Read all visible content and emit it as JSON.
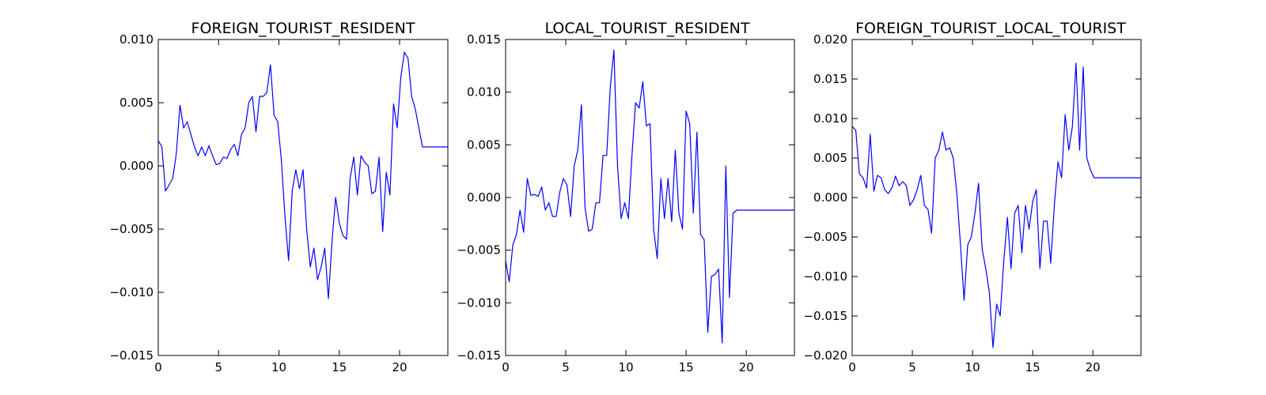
{
  "chart_data": [
    {
      "type": "line",
      "title": "FOREIGN_TOURIST_RESIDENT",
      "xlim": [
        0,
        24
      ],
      "ylim": [
        -0.015,
        0.01
      ],
      "xticks": [
        0,
        5,
        10,
        15,
        20
      ],
      "xtick_labels": [
        "0",
        "5",
        "10",
        "15",
        "20"
      ],
      "yticks": [
        -0.015,
        -0.01,
        -0.005,
        0.0,
        0.005,
        0.01
      ],
      "ytick_labels": [
        "−0.015",
        "−0.010",
        "−0.005",
        "0.000",
        "0.005",
        "0.010"
      ],
      "grid": false,
      "color": "#0000ff",
      "series": [
        {
          "x": [
            0,
            0.3,
            0.6,
            0.9,
            1.2,
            1.5,
            1.8,
            2.1,
            2.4,
            2.7,
            3.0,
            3.3,
            3.6,
            3.9,
            4.2,
            4.5,
            4.8,
            5.1,
            5.4,
            5.7,
            6.0,
            6.3,
            6.6,
            6.9,
            7.2,
            7.5,
            7.8,
            8.1,
            8.4,
            8.7,
            9.0,
            9.3,
            9.6,
            9.9,
            10.2,
            10.5,
            10.8,
            11.1,
            11.4,
            11.7,
            12.0,
            12.3,
            12.6,
            12.9,
            13.2,
            13.5,
            13.8,
            14.1,
            14.4,
            14.7,
            15.0,
            15.3,
            15.6,
            15.9,
            16.2,
            16.5,
            16.8,
            17.1,
            17.4,
            17.7,
            18.0,
            18.3,
            18.6,
            18.9,
            19.2,
            19.5,
            19.8,
            20.1,
            20.4,
            20.7,
            21.0,
            21.3,
            21.6,
            21.9,
            22.2,
            22.5,
            22.8,
            23.1,
            23.4,
            23.7,
            24.0
          ],
          "y": [
            0.002,
            0.0015,
            -0.002,
            -0.0015,
            -0.001,
            0.001,
            0.0048,
            0.003,
            0.0035,
            0.0025,
            0.0015,
            0.0008,
            0.0015,
            0.0008,
            0.0016,
            0.0008,
            0.0001,
            0.0002,
            0.0007,
            0.0006,
            0.0013,
            0.0017,
            0.0008,
            0.0025,
            0.003,
            0.005,
            0.0055,
            0.0027,
            0.0055,
            0.0055,
            0.0058,
            0.008,
            0.004,
            0.0035,
            0.0005,
            -0.004,
            -0.0075,
            -0.002,
            -0.0003,
            -0.0018,
            -0.0003,
            -0.005,
            -0.008,
            -0.0065,
            -0.009,
            -0.008,
            -0.0065,
            -0.0105,
            -0.006,
            -0.0025,
            -0.0045,
            -0.0055,
            -0.0058,
            -0.001,
            0.0007,
            -0.0023,
            0.0008,
            0.0003,
            0.0,
            -0.0022,
            -0.002,
            0.0007,
            -0.0052,
            -0.0005,
            -0.0023,
            0.0049,
            0.003,
            0.007,
            0.009,
            0.0085,
            0.0055,
            0.0045,
            0.003,
            0.0015,
            0.0015,
            0.0015,
            0.0015,
            0.0015,
            0.0015,
            0.0015,
            0.0015
          ]
        }
      ]
    },
    {
      "type": "line",
      "title": "LOCAL_TOURIST_RESIDENT",
      "xlim": [
        0,
        24
      ],
      "ylim": [
        -0.015,
        0.015
      ],
      "xticks": [
        0,
        5,
        10,
        15,
        20
      ],
      "xtick_labels": [
        "0",
        "5",
        "10",
        "15",
        "20"
      ],
      "yticks": [
        -0.015,
        -0.01,
        -0.005,
        0.0,
        0.005,
        0.01,
        0.015
      ],
      "ytick_labels": [
        "−0.015",
        "−0.010",
        "−0.005",
        "0.000",
        "0.005",
        "0.010",
        "0.015"
      ],
      "grid": false,
      "color": "#0000ff",
      "series": [
        {
          "x": [
            0,
            0.3,
            0.6,
            0.9,
            1.2,
            1.5,
            1.8,
            2.1,
            2.4,
            2.7,
            3.0,
            3.3,
            3.6,
            3.9,
            4.2,
            4.5,
            4.8,
            5.1,
            5.4,
            5.7,
            6.0,
            6.3,
            6.6,
            6.9,
            7.2,
            7.5,
            7.8,
            8.1,
            8.4,
            8.7,
            9.0,
            9.3,
            9.6,
            9.9,
            10.2,
            10.5,
            10.8,
            11.1,
            11.4,
            11.7,
            12.0,
            12.3,
            12.6,
            12.9,
            13.2,
            13.5,
            13.8,
            14.1,
            14.4,
            14.7,
            15.0,
            15.3,
            15.6,
            15.9,
            16.2,
            16.5,
            16.8,
            17.1,
            17.4,
            17.7,
            18.0,
            18.3,
            18.6,
            18.9,
            19.2,
            19.5,
            19.8,
            20.1,
            20.4,
            20.7,
            21.0,
            21.3,
            21.6,
            21.9,
            22.2,
            22.5,
            22.8,
            23.1,
            23.4,
            23.7,
            24.0
          ],
          "y": [
            -0.006,
            -0.008,
            -0.0045,
            -0.0035,
            -0.0012,
            -0.0033,
            0.0018,
            0.0002,
            0.0003,
            0.0001,
            0.001,
            -0.0012,
            -0.0005,
            -0.0018,
            -0.0018,
            0.0005,
            0.0018,
            0.0012,
            -0.0018,
            0.003,
            0.0045,
            0.0088,
            -0.001,
            -0.0032,
            -0.003,
            -0.0005,
            -0.0005,
            0.004,
            0.004,
            0.0105,
            0.014,
            0.003,
            -0.002,
            -0.0005,
            -0.002,
            0.004,
            0.009,
            0.0085,
            0.011,
            0.0068,
            0.007,
            -0.003,
            -0.0058,
            0.0018,
            -0.002,
            0.0018,
            -0.0023,
            0.0045,
            -0.0015,
            -0.003,
            0.0082,
            0.007,
            -0.0015,
            0.0062,
            -0.0035,
            -0.004,
            -0.0128,
            -0.0075,
            -0.0073,
            -0.0068,
            -0.0138,
            0.003,
            -0.0095,
            -0.0015,
            -0.0012,
            -0.0012,
            -0.0012,
            -0.0012,
            -0.0012,
            -0.0012,
            -0.0012,
            -0.0012,
            -0.0012,
            -0.0012,
            -0.0012,
            -0.0012,
            -0.0012,
            -0.0012,
            -0.0012,
            -0.0012,
            -0.0012
          ]
        }
      ]
    },
    {
      "type": "line",
      "title": "FOREIGN_TOURIST_LOCAL_TOURIST",
      "xlim": [
        0,
        24
      ],
      "ylim": [
        -0.02,
        0.02
      ],
      "xticks": [
        0,
        5,
        10,
        15,
        20
      ],
      "xtick_labels": [
        "0",
        "5",
        "10",
        "15",
        "20"
      ],
      "yticks": [
        -0.02,
        -0.015,
        -0.01,
        -0.005,
        0.0,
        0.005,
        0.01,
        0.015,
        0.02
      ],
      "ytick_labels": [
        "−0.020",
        "−0.015",
        "−0.010",
        "−0.005",
        "0.000",
        "0.005",
        "0.010",
        "0.015",
        "0.020"
      ],
      "grid": false,
      "color": "#0000ff",
      "series": [
        {
          "x": [
            0,
            0.3,
            0.6,
            0.9,
            1.2,
            1.5,
            1.8,
            2.1,
            2.4,
            2.7,
            3.0,
            3.3,
            3.6,
            3.9,
            4.2,
            4.5,
            4.8,
            5.1,
            5.4,
            5.7,
            6.0,
            6.3,
            6.6,
            6.9,
            7.2,
            7.5,
            7.8,
            8.1,
            8.4,
            8.7,
            9.0,
            9.3,
            9.6,
            9.9,
            10.2,
            10.5,
            10.8,
            11.1,
            11.4,
            11.7,
            12.0,
            12.3,
            12.6,
            12.9,
            13.2,
            13.5,
            13.8,
            14.1,
            14.4,
            14.7,
            15.0,
            15.3,
            15.6,
            15.9,
            16.2,
            16.5,
            16.8,
            17.1,
            17.4,
            17.7,
            18.0,
            18.3,
            18.6,
            18.9,
            19.2,
            19.5,
            19.8,
            20.1,
            20.4,
            20.7,
            21.0,
            21.3,
            21.6,
            21.9,
            22.2,
            22.5,
            22.8,
            23.1,
            23.4,
            23.7,
            24.0
          ],
          "y": [
            0.009,
            0.0085,
            0.003,
            0.0025,
            0.0012,
            0.008,
            0.0008,
            0.0028,
            0.0025,
            0.001,
            0.0005,
            0.0012,
            0.0027,
            0.0015,
            0.002,
            0.0015,
            -0.001,
            -0.0003,
            0.001,
            0.0028,
            -0.001,
            -0.0015,
            -0.0045,
            0.005,
            0.006,
            0.0083,
            0.006,
            0.0063,
            0.005,
            0.0005,
            -0.006,
            -0.013,
            -0.006,
            -0.005,
            -0.002,
            0.0018,
            -0.0065,
            -0.009,
            -0.012,
            -0.019,
            -0.0135,
            -0.015,
            -0.008,
            -0.0025,
            -0.009,
            -0.002,
            -0.001,
            -0.007,
            -0.001,
            -0.004,
            -0.0005,
            0.001,
            -0.009,
            -0.003,
            -0.003,
            -0.0083,
            -0.001,
            0.0045,
            0.0025,
            0.0105,
            0.006,
            0.009,
            0.017,
            0.006,
            0.0165,
            0.005,
            0.0035,
            0.0025,
            0.0025,
            0.0025,
            0.0025,
            0.0025,
            0.0025,
            0.0025,
            0.0025,
            0.0025,
            0.0025,
            0.0025,
            0.0025,
            0.0025,
            0.0025
          ]
        }
      ]
    }
  ]
}
